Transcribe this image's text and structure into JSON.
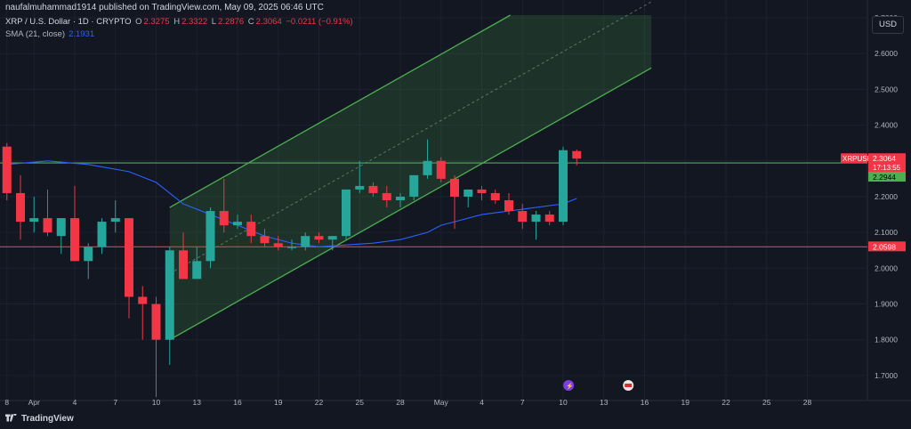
{
  "header": {
    "published_text": "naufalmuhammad1914 published on TradingView.com, May 09, 2025 06:46 UTC"
  },
  "symbol": {
    "name": "XRP / U.S. Dollar · 1D · CRYPTO",
    "o_label": "O",
    "o": "2.3275",
    "h_label": "H",
    "h": "2.3322",
    "l_label": "L",
    "l": "2.2876",
    "c_label": "C",
    "c": "2.3064",
    "change": "−0.0211 (−0.91%)"
  },
  "sma": {
    "label": "SMA (21, close)",
    "value": "2.1931"
  },
  "currency_button": "USD",
  "footer": {
    "brand": "TradingView"
  },
  "colors": {
    "up": "#26a69a",
    "down": "#f23645",
    "channel": "#4caf50",
    "sma": "#2962ff",
    "bg": "#131722",
    "support": "#f23645",
    "resistance": "#4caf50"
  },
  "chart_data": {
    "type": "candlestick",
    "y_tick_labels": [
      "2.7000",
      "2.6000",
      "2.5000",
      "2.4000",
      "2.3000",
      "2.2000",
      "2.1000",
      "2.0000",
      "1.9000",
      "1.8000",
      "1.7000"
    ],
    "x_tick_labels": [
      "8",
      "Apr",
      "4",
      "7",
      "10",
      "13",
      "16",
      "19",
      "22",
      "25",
      "28",
      "May",
      "4",
      "7",
      "10",
      "13",
      "16",
      "19",
      "22",
      "25",
      "28"
    ],
    "x_ticks_day": [
      -1,
      1,
      4,
      7,
      10,
      13,
      16,
      19,
      22,
      25,
      28,
      31,
      34,
      37,
      40,
      43,
      46,
      49,
      52,
      55,
      58
    ],
    "ylim": [
      1.655,
      2.72
    ],
    "candles": [
      {
        "d": -1,
        "o": 2.34,
        "h": 2.35,
        "l": 2.19,
        "c": 2.21
      },
      {
        "d": 0,
        "o": 2.21,
        "h": 2.26,
        "l": 2.08,
        "c": 2.13
      },
      {
        "d": 1,
        "o": 2.13,
        "h": 2.2,
        "l": 2.1,
        "c": 2.14
      },
      {
        "d": 2,
        "o": 2.14,
        "h": 2.22,
        "l": 2.09,
        "c": 2.1
      },
      {
        "d": 3,
        "o": 2.09,
        "h": 2.14,
        "l": 2.04,
        "c": 2.14
      },
      {
        "d": 4,
        "o": 2.14,
        "h": 2.23,
        "l": 2.02,
        "c": 2.02
      },
      {
        "d": 5,
        "o": 2.02,
        "h": 2.07,
        "l": 1.97,
        "c": 2.06
      },
      {
        "d": 6,
        "o": 2.06,
        "h": 2.14,
        "l": 2.04,
        "c": 2.13
      },
      {
        "d": 7,
        "o": 2.13,
        "h": 2.19,
        "l": 2.1,
        "c": 2.14
      },
      {
        "d": 8,
        "o": 2.14,
        "h": 2.14,
        "l": 1.86,
        "c": 1.92
      },
      {
        "d": 9,
        "o": 1.92,
        "h": 1.95,
        "l": 1.8,
        "c": 1.9
      },
      {
        "d": 10,
        "o": 1.9,
        "h": 1.92,
        "l": 1.64,
        "c": 1.8
      },
      {
        "d": 11,
        "o": 1.8,
        "h": 2.06,
        "l": 1.73,
        "c": 2.05
      },
      {
        "d": 12,
        "o": 2.05,
        "h": 2.1,
        "l": 1.97,
        "c": 1.97
      },
      {
        "d": 13,
        "o": 1.97,
        "h": 2.06,
        "l": 1.97,
        "c": 2.02
      },
      {
        "d": 14,
        "o": 2.02,
        "h": 2.17,
        "l": 2.0,
        "c": 2.16
      },
      {
        "d": 15,
        "o": 2.16,
        "h": 2.25,
        "l": 2.1,
        "c": 2.12
      },
      {
        "d": 16,
        "o": 2.12,
        "h": 2.15,
        "l": 2.11,
        "c": 2.13
      },
      {
        "d": 17,
        "o": 2.13,
        "h": 2.15,
        "l": 2.07,
        "c": 2.09
      },
      {
        "d": 18,
        "o": 2.09,
        "h": 2.11,
        "l": 2.06,
        "c": 2.07
      },
      {
        "d": 19,
        "o": 2.07,
        "h": 2.09,
        "l": 2.05,
        "c": 2.06
      },
      {
        "d": 20,
        "o": 2.06,
        "h": 2.08,
        "l": 2.05,
        "c": 2.06
      },
      {
        "d": 21,
        "o": 2.06,
        "h": 2.1,
        "l": 2.05,
        "c": 2.09
      },
      {
        "d": 22,
        "o": 2.09,
        "h": 2.1,
        "l": 2.07,
        "c": 2.08
      },
      {
        "d": 23,
        "o": 2.08,
        "h": 2.09,
        "l": 2.05,
        "c": 2.09
      },
      {
        "d": 24,
        "o": 2.09,
        "h": 2.22,
        "l": 2.08,
        "c": 2.22
      },
      {
        "d": 25,
        "o": 2.22,
        "h": 2.3,
        "l": 2.21,
        "c": 2.23
      },
      {
        "d": 26,
        "o": 2.23,
        "h": 2.24,
        "l": 2.2,
        "c": 2.21
      },
      {
        "d": 27,
        "o": 2.21,
        "h": 2.23,
        "l": 2.17,
        "c": 2.19
      },
      {
        "d": 28,
        "o": 2.19,
        "h": 2.21,
        "l": 2.17,
        "c": 2.2
      },
      {
        "d": 29,
        "o": 2.2,
        "h": 2.26,
        "l": 2.19,
        "c": 2.26
      },
      {
        "d": 30,
        "o": 2.26,
        "h": 2.36,
        "l": 2.25,
        "c": 2.3
      },
      {
        "d": 31,
        "o": 2.3,
        "h": 2.31,
        "l": 2.24,
        "c": 2.25
      },
      {
        "d": 32,
        "o": 2.25,
        "h": 2.26,
        "l": 2.11,
        "c": 2.2
      },
      {
        "d": 33,
        "o": 2.2,
        "h": 2.22,
        "l": 2.17,
        "c": 2.22
      },
      {
        "d": 34,
        "o": 2.22,
        "h": 2.23,
        "l": 2.19,
        "c": 2.21
      },
      {
        "d": 35,
        "o": 2.21,
        "h": 2.22,
        "l": 2.18,
        "c": 2.19
      },
      {
        "d": 36,
        "o": 2.19,
        "h": 2.21,
        "l": 2.15,
        "c": 2.16
      },
      {
        "d": 37,
        "o": 2.16,
        "h": 2.18,
        "l": 2.11,
        "c": 2.13
      },
      {
        "d": 38,
        "o": 2.13,
        "h": 2.16,
        "l": 2.08,
        "c": 2.15
      },
      {
        "d": 39,
        "o": 2.15,
        "h": 2.16,
        "l": 2.12,
        "c": 2.13
      },
      {
        "d": 40,
        "o": 2.13,
        "h": 2.34,
        "l": 2.12,
        "c": 2.33
      },
      {
        "d": 41,
        "o": 2.3275,
        "h": 2.3322,
        "l": 2.2876,
        "c": 2.3064
      }
    ],
    "sma_points": [
      [
        -1,
        2.29
      ],
      [
        2,
        2.3
      ],
      [
        5,
        2.29
      ],
      [
        8,
        2.27
      ],
      [
        10,
        2.24
      ],
      [
        12,
        2.18
      ],
      [
        14,
        2.15
      ],
      [
        16,
        2.12
      ],
      [
        18,
        2.09
      ],
      [
        20,
        2.07
      ],
      [
        22,
        2.06
      ],
      [
        24,
        2.065
      ],
      [
        26,
        2.07
      ],
      [
        28,
        2.08
      ],
      [
        30,
        2.1
      ],
      [
        31,
        2.12
      ],
      [
        32,
        2.13
      ],
      [
        34,
        2.15
      ],
      [
        36,
        2.16
      ],
      [
        38,
        2.17
      ],
      [
        40,
        2.18
      ],
      [
        41,
        2.195
      ]
    ],
    "support_level": 2.0598,
    "resistance_level": 2.2944,
    "current_price": 2.3064,
    "channel": {
      "start_day": 11,
      "end_day": 46.5,
      "lower_start": 1.8,
      "upper_start": 2.17,
      "lower_end": 2.56,
      "upper_end": 2.93
    },
    "price_labels": {
      "symbol": "XRPUSD",
      "price": "2.3064",
      "countdown": "17:13:55",
      "resistance": "2.2944",
      "support": "2.0598"
    }
  }
}
